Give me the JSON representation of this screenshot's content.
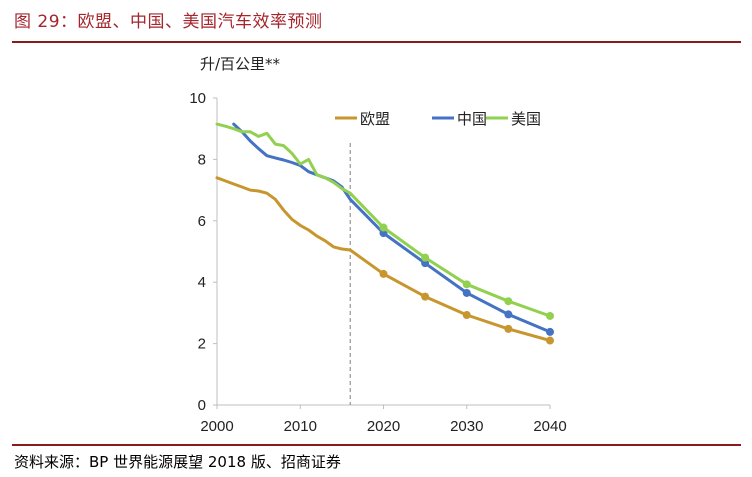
{
  "figure": {
    "title": "图 29：欧盟、中国、美国汽车效率预测",
    "source": "资料来源：BP 世界能源展望 2018 版、招商证券"
  },
  "chart_data": {
    "type": "line",
    "title": "",
    "xlabel": "",
    "ylabel": "升/百公里**",
    "xlim": [
      2000,
      2040
    ],
    "ylim": [
      0,
      10
    ],
    "x_ticks": [
      "2000",
      "2010",
      "2020",
      "2030",
      "2040"
    ],
    "y_ticks": [
      "0",
      "2",
      "4",
      "6",
      "8",
      "10"
    ],
    "grid": false,
    "legend_position": "top-right",
    "forecast_divider_x": 2016,
    "series": [
      {
        "name": "欧盟",
        "color": "#c8962e",
        "x": [
          2000,
          2001,
          2002,
          2003,
          2004,
          2005,
          2006,
          2007,
          2008,
          2009,
          2010,
          2011,
          2012,
          2013,
          2014,
          2015,
          2016,
          2020,
          2025,
          2030,
          2035,
          2040
        ],
        "y": [
          7.4,
          7.3,
          7.2,
          7.1,
          7.0,
          6.97,
          6.9,
          6.7,
          6.35,
          6.05,
          5.85,
          5.7,
          5.5,
          5.35,
          5.15,
          5.08,
          5.05,
          4.27,
          3.53,
          2.93,
          2.48,
          2.1
        ],
        "markers_at": [
          2020,
          2025,
          2030,
          2035,
          2040
        ]
      },
      {
        "name": "中国",
        "color": "#4472c4",
        "x": [
          2002,
          2003,
          2004,
          2005,
          2006,
          2007,
          2008,
          2009,
          2010,
          2011,
          2012,
          2013,
          2014,
          2015,
          2016,
          2020,
          2025,
          2030,
          2035,
          2040
        ],
        "y": [
          9.15,
          8.9,
          8.6,
          8.35,
          8.12,
          8.05,
          7.98,
          7.9,
          7.8,
          7.6,
          7.5,
          7.4,
          7.3,
          7.1,
          6.7,
          5.6,
          4.62,
          3.65,
          2.95,
          2.38
        ],
        "markers_at": [
          2020,
          2025,
          2030,
          2035,
          2040
        ]
      },
      {
        "name": "美国",
        "color": "#92d050",
        "x": [
          2000,
          2001,
          2002,
          2003,
          2004,
          2005,
          2006,
          2007,
          2008,
          2009,
          2010,
          2011,
          2012,
          2013,
          2014,
          2015,
          2016,
          2020,
          2025,
          2030,
          2035,
          2040
        ],
        "y": [
          9.15,
          9.08,
          9.0,
          8.9,
          8.9,
          8.75,
          8.85,
          8.5,
          8.45,
          8.2,
          7.85,
          8.0,
          7.5,
          7.4,
          7.25,
          7.05,
          6.9,
          5.78,
          4.8,
          3.93,
          3.38,
          2.9
        ],
        "markers_at": [
          2020,
          2025,
          2030,
          2035,
          2040
        ]
      }
    ]
  }
}
